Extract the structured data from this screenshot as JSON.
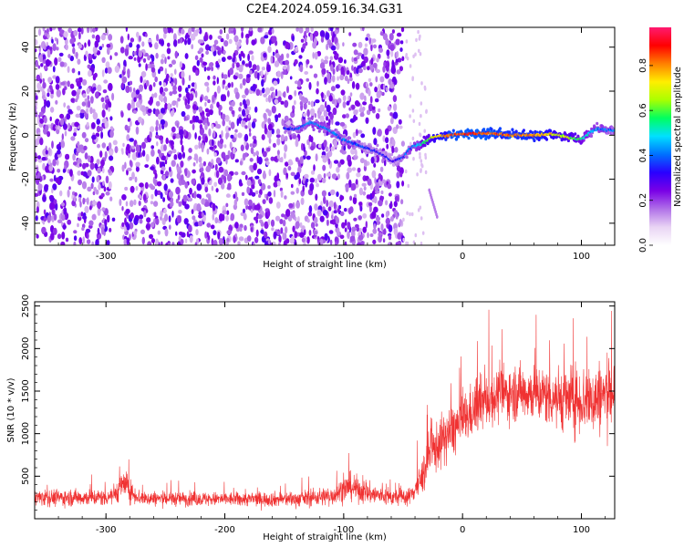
{
  "title": "C2E4.2024.059.16.34.G31",
  "chart_data": [
    {
      "type": "heatmap",
      "xlabel": "Height of straight line (km)",
      "ylabel": "Frequency (Hz)",
      "xlim": [
        -360,
        128
      ],
      "ylim": [
        -50,
        49
      ],
      "xticks": [
        -300,
        -200,
        -100,
        0,
        100
      ],
      "yticks": [
        -40,
        -20,
        0,
        20,
        40
      ],
      "colorbar": {
        "label": "Normalized spectral amplitude",
        "range": [
          0,
          0.97
        ],
        "ticks": [
          "0.0",
          "0.2",
          "0.4",
          "0.6",
          "0.8"
        ],
        "tick_values": [
          0.0,
          0.2,
          0.4,
          0.6,
          0.8
        ],
        "colors": [
          "#ffffff",
          "#e9d4f4",
          "#b070e8",
          "#7a00e6",
          "#2a00ff",
          "#0070ff",
          "#00e0ff",
          "#00ff60",
          "#aaff00",
          "#ffee00",
          "#ff8000",
          "#ff0000",
          "#ff1a70"
        ]
      },
      "noise_region_x": [
        -360,
        -50
      ],
      "signal_track": [
        {
          "x": -150,
          "y": 3
        },
        {
          "x": -138,
          "y": 3
        },
        {
          "x": -128,
          "y": 6
        },
        {
          "x": -115,
          "y": 3
        },
        {
          "x": -100,
          "y": -2
        },
        {
          "x": -85,
          "y": -5
        },
        {
          "x": -70,
          "y": -8
        },
        {
          "x": -58,
          "y": -12
        },
        {
          "x": -50,
          "y": -10
        },
        {
          "x": -42,
          "y": -5
        },
        {
          "x": -35,
          "y": -4
        },
        {
          "x": -25,
          "y": -1
        },
        {
          "x": -12,
          "y": 0
        },
        {
          "x": 0,
          "y": 0.5
        },
        {
          "x": 20,
          "y": 1
        },
        {
          "x": 40,
          "y": 0
        },
        {
          "x": 60,
          "y": 0
        },
        {
          "x": 75,
          "y": 0.5
        },
        {
          "x": 90,
          "y": -1
        },
        {
          "x": 100,
          "y": -2
        },
        {
          "x": 112,
          "y": 3
        },
        {
          "x": 128,
          "y": 2
        }
      ],
      "track_amplitude": [
        {
          "x": -150,
          "a": 0.35
        },
        {
          "x": -125,
          "a": 0.45
        },
        {
          "x": -100,
          "a": 0.42
        },
        {
          "x": -80,
          "a": 0.35
        },
        {
          "x": -58,
          "a": 0.3
        },
        {
          "x": -40,
          "a": 0.45
        },
        {
          "x": -25,
          "a": 0.7
        },
        {
          "x": -10,
          "a": 0.85
        },
        {
          "x": 5,
          "a": 0.9
        },
        {
          "x": 30,
          "a": 0.85
        },
        {
          "x": 60,
          "a": 0.82
        },
        {
          "x": 90,
          "a": 0.65
        },
        {
          "x": 110,
          "a": 0.45
        },
        {
          "x": 128,
          "a": 0.4
        }
      ]
    },
    {
      "type": "line",
      "xlabel": "Height of straight line (km)",
      "ylabel": "SNR (10 * v/v)",
      "xlim": [
        -360,
        128
      ],
      "ylim": [
        0,
        2550
      ],
      "xticks": [
        -300,
        -200,
        -100,
        0,
        100
      ],
      "yticks": [
        500,
        1000,
        1500,
        2000,
        2500
      ],
      "color": "#f03232",
      "envelope": [
        {
          "x": -360,
          "mean": 250,
          "spread": 120
        },
        {
          "x": -300,
          "mean": 250,
          "spread": 120
        },
        {
          "x": -292,
          "mean": 300,
          "spread": 150
        },
        {
          "x": -285,
          "mean": 420,
          "spread": 220
        },
        {
          "x": -278,
          "mean": 300,
          "spread": 150
        },
        {
          "x": -270,
          "mean": 240,
          "spread": 110
        },
        {
          "x": -200,
          "mean": 230,
          "spread": 100
        },
        {
          "x": -140,
          "mean": 230,
          "spread": 110
        },
        {
          "x": -110,
          "mean": 270,
          "spread": 140
        },
        {
          "x": -95,
          "mean": 380,
          "spread": 200
        },
        {
          "x": -80,
          "mean": 300,
          "spread": 160
        },
        {
          "x": -60,
          "mean": 250,
          "spread": 120
        },
        {
          "x": -45,
          "mean": 260,
          "spread": 120
        },
        {
          "x": -35,
          "mean": 450,
          "spread": 250
        },
        {
          "x": -28,
          "mean": 750,
          "spread": 350
        },
        {
          "x": -15,
          "mean": 950,
          "spread": 380
        },
        {
          "x": 0,
          "mean": 1150,
          "spread": 380
        },
        {
          "x": 15,
          "mean": 1350,
          "spread": 380
        },
        {
          "x": 30,
          "mean": 1450,
          "spread": 380
        },
        {
          "x": 50,
          "mean": 1500,
          "spread": 400
        },
        {
          "x": 70,
          "mean": 1450,
          "spread": 420
        },
        {
          "x": 90,
          "mean": 1400,
          "spread": 480
        },
        {
          "x": 110,
          "mean": 1400,
          "spread": 520
        },
        {
          "x": 128,
          "mean": 1500,
          "spread": 560
        }
      ]
    }
  ]
}
